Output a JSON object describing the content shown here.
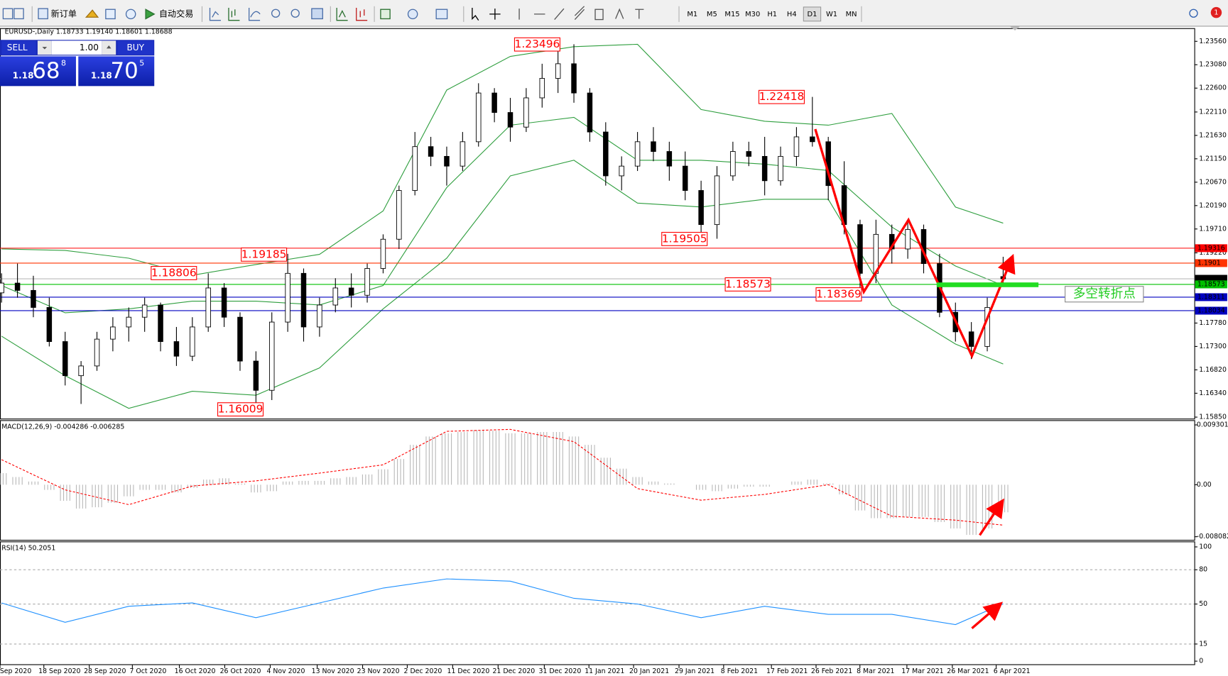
{
  "toolbar": {
    "new_order": "新订单",
    "auto_trading": "自动交易",
    "timeframes": [
      "M1",
      "M5",
      "M15",
      "M30",
      "H1",
      "H4",
      "D1",
      "W1",
      "MN"
    ],
    "notifications": "1"
  },
  "trade_panel": {
    "sell": "SELL",
    "lot": "1.00",
    "buy": "BUY",
    "bid": {
      "big": "1.18",
      "pips": "68",
      "frac": "8"
    },
    "ask": {
      "big": "1.18",
      "pips": "70",
      "frac": "5"
    }
  },
  "main_chart": {
    "header": "EURUSD-,Daily  1.18733 1.19140 1.18601 1.18688",
    "ylim": [
      1.1582,
      1.2383
    ],
    "yticks": [
      {
        "value": 1.2356,
        "label": "1.23560"
      },
      {
        "value": 1.2308,
        "label": "1.23080"
      },
      {
        "value": 1.226,
        "label": "1.22600"
      },
      {
        "value": 1.2211,
        "label": "1.22110"
      },
      {
        "value": 1.2163,
        "label": "1.21630"
      },
      {
        "value": 1.2115,
        "label": "1.21150"
      },
      {
        "value": 1.2067,
        "label": "1.20670"
      },
      {
        "value": 1.2019,
        "label": "1.20190"
      },
      {
        "value": 1.1971,
        "label": "1.19710"
      },
      {
        "value": 1.1922,
        "label": "1.19220"
      },
      {
        "value": 1.1778,
        "label": "1.17780"
      },
      {
        "value": 1.173,
        "label": "1.17300"
      },
      {
        "value": 1.1682,
        "label": "1.16820"
      },
      {
        "value": 1.1634,
        "label": "1.16340"
      },
      {
        "value": 1.1585,
        "label": "1.15850"
      }
    ],
    "candles": [
      [
        1.184,
        1.188,
        1.182,
        1.186
      ],
      [
        1.186,
        1.19,
        1.183,
        1.1845
      ],
      [
        1.1845,
        1.1875,
        1.179,
        1.181
      ],
      [
        1.181,
        1.183,
        1.173,
        1.174
      ],
      [
        1.174,
        1.176,
        1.165,
        1.167
      ],
      [
        1.167,
        1.17,
        1.1612,
        1.169
      ],
      [
        1.169,
        1.176,
        1.168,
        1.1745
      ],
      [
        1.1745,
        1.179,
        1.172,
        1.177
      ],
      [
        1.177,
        1.181,
        1.174,
        1.179
      ],
      [
        1.179,
        1.183,
        1.176,
        1.1815
      ],
      [
        1.1815,
        1.182,
        1.172,
        1.174
      ],
      [
        1.174,
        1.177,
        1.169,
        1.171
      ],
      [
        1.171,
        1.179,
        1.17,
        1.177
      ],
      [
        1.177,
        1.188,
        1.176,
        1.185
      ],
      [
        1.185,
        1.186,
        1.177,
        1.179
      ],
      [
        1.179,
        1.18,
        1.168,
        1.17
      ],
      [
        1.17,
        1.172,
        1.1603,
        1.164
      ],
      [
        1.164,
        1.18,
        1.162,
        1.178
      ],
      [
        1.178,
        1.192,
        1.176,
        1.188
      ],
      [
        1.188,
        1.189,
        1.174,
        1.177
      ],
      [
        1.177,
        1.183,
        1.175,
        1.1815
      ],
      [
        1.1815,
        1.187,
        1.18,
        1.185
      ],
      [
        1.185,
        1.188,
        1.181,
        1.1835
      ],
      [
        1.1835,
        1.19,
        1.182,
        1.189
      ],
      [
        1.189,
        1.196,
        1.188,
        1.195
      ],
      [
        1.195,
        1.206,
        1.193,
        1.205
      ],
      [
        1.205,
        1.217,
        1.204,
        1.214
      ],
      [
        1.214,
        1.216,
        1.21,
        1.212
      ],
      [
        1.212,
        1.214,
        1.206,
        1.21
      ],
      [
        1.21,
        1.217,
        1.209,
        1.215
      ],
      [
        1.215,
        1.227,
        1.214,
        1.225
      ],
      [
        1.225,
        1.226,
        1.219,
        1.221
      ],
      [
        1.221,
        1.224,
        1.215,
        1.218
      ],
      [
        1.218,
        1.226,
        1.217,
        1.224
      ],
      [
        1.224,
        1.231,
        1.222,
        1.228
      ],
      [
        1.228,
        1.234,
        1.225,
        1.231
      ],
      [
        1.231,
        1.235,
        1.223,
        1.225
      ],
      [
        1.225,
        1.226,
        1.215,
        1.217
      ],
      [
        1.217,
        1.219,
        1.206,
        1.208
      ],
      [
        1.208,
        1.212,
        1.205,
        1.21
      ],
      [
        1.21,
        1.217,
        1.209,
        1.215
      ],
      [
        1.215,
        1.218,
        1.211,
        1.213
      ],
      [
        1.213,
        1.215,
        1.207,
        1.21
      ],
      [
        1.21,
        1.213,
        1.203,
        1.205
      ],
      [
        1.205,
        1.207,
        1.196,
        1.198
      ],
      [
        1.198,
        1.21,
        1.1951,
        1.208
      ],
      [
        1.208,
        1.215,
        1.207,
        1.213
      ],
      [
        1.213,
        1.215,
        1.21,
        1.212
      ],
      [
        1.212,
        1.216,
        1.204,
        1.207
      ],
      [
        1.207,
        1.214,
        1.206,
        1.212
      ],
      [
        1.212,
        1.218,
        1.21,
        1.216
      ],
      [
        1.216,
        1.2242,
        1.214,
        1.215
      ],
      [
        1.215,
        1.216,
        1.203,
        1.206
      ],
      [
        1.206,
        1.211,
        1.196,
        1.198
      ],
      [
        1.198,
        1.199,
        1.1837,
        1.188
      ],
      [
        1.188,
        1.199,
        1.186,
        1.196
      ],
      [
        1.196,
        1.198,
        1.19,
        1.193
      ],
      [
        1.193,
        1.199,
        1.191,
        1.197
      ],
      [
        1.197,
        1.198,
        1.188,
        1.19
      ],
      [
        1.19,
        1.192,
        1.179,
        1.18
      ],
      [
        1.18,
        1.182,
        1.174,
        1.176
      ],
      [
        1.176,
        1.178,
        1.1704,
        1.173
      ],
      [
        1.173,
        1.183,
        1.172,
        1.181
      ],
      [
        1.18733,
        1.1914,
        1.18601,
        1.18688
      ]
    ],
    "bands": {
      "x": [
        0,
        4,
        8,
        12,
        16,
        20,
        24,
        28,
        32,
        36,
        40,
        44,
        48,
        52,
        56,
        60,
        63
      ],
      "color": "#2e9e3e",
      "upper": [
        1.193,
        1.1927,
        1.1911,
        1.1876,
        1.1898,
        1.1919,
        1.2008,
        1.2256,
        1.2325,
        1.2345,
        1.235,
        1.2216,
        1.2192,
        1.2184,
        1.2208,
        1.2016,
        1.1983
      ],
      "middle": [
        1.1855,
        1.1799,
        1.1807,
        1.1823,
        1.1823,
        1.1815,
        1.1855,
        1.2056,
        1.2184,
        1.22,
        1.2112,
        1.2112,
        1.2104,
        1.2091,
        1.1975,
        1.1895,
        1.1855
      ],
      "lower": [
        1.1751,
        1.167,
        1.1603,
        1.1638,
        1.163,
        1.1686,
        1.1807,
        1.1911,
        1.208,
        1.2112,
        1.2024,
        1.2016,
        1.2032,
        1.2032,
        1.1815,
        1.1735,
        1.1694
      ]
    },
    "levels": [
      {
        "value": 1.19316,
        "color": "#ff0000"
      },
      {
        "value": 1.1901,
        "color": "#ff3300"
      },
      {
        "value": 1.18688,
        "color": "#000000"
      },
      {
        "value": 1.18573,
        "color": "#00c000"
      },
      {
        "value": 1.18311,
        "color": "#0000c0"
      },
      {
        "value": 1.18034,
        "color": "#0000c0"
      }
    ],
    "annotations": [
      1.23496,
      1.22418,
      1.19505,
      1.19185,
      1.18806,
      1.18573,
      1.18369,
      1.16009
    ],
    "note": "多空转折点"
  },
  "macd": {
    "header": "MACD(12,26,9) -0.004286 -0.006285",
    "ylim": [
      -0.00857,
      0.01004
    ],
    "yticks": [
      0.009301,
      {
        "value": 0,
        "label": "0.00"
      },
      -0.008082
    ],
    "histogram": [
      0.0018,
      0.0012,
      0.0005,
      -0.0008,
      -0.0025,
      -0.0037,
      -0.0035,
      -0.0028,
      -0.0018,
      -0.0008,
      -0.0008,
      -0.0012,
      -0.0005,
      0.0008,
      0.001,
      0.0002,
      -0.0012,
      -0.001,
      0.0005,
      0.0006,
      0.0006,
      0.001,
      0.0012,
      0.0016,
      0.0024,
      0.004,
      0.0062,
      0.0075,
      0.008,
      0.0082,
      0.0085,
      0.0084,
      0.008,
      0.008,
      0.0082,
      0.0082,
      0.0075,
      0.0062,
      0.0042,
      0.0025,
      0.0012,
      0.0005,
      0.0002,
      0.0,
      -0.0008,
      -0.001,
      -0.0006,
      -0.0003,
      -0.0003,
      0.0,
      0.0005,
      0.0008,
      0.0002,
      -0.0015,
      -0.004,
      -0.0052,
      -0.0052,
      -0.005,
      -0.005,
      -0.0058,
      -0.0068,
      -0.0078,
      -0.0068,
      -0.004286
    ],
    "signal_x": [
      0,
      4,
      8,
      12,
      16,
      20,
      24,
      28,
      32,
      36,
      40,
      44,
      48,
      52,
      56,
      60,
      63
    ],
    "signal": [
      0.0039,
      -0.0008,
      -0.0031,
      -0.0002,
      0.0006,
      0.0018,
      0.0031,
      0.0083,
      0.0086,
      0.0067,
      -0.0006,
      -0.0024,
      -0.0015,
      0.0,
      -0.0049,
      -0.0055,
      -0.006285
    ]
  },
  "rsi": {
    "header": "RSI(14) 50.2051",
    "ylim": [
      -3.4,
      104.1
    ],
    "yticks": [
      100,
      80,
      50,
      15,
      0
    ],
    "levels": [
      80,
      50,
      15
    ],
    "x": [
      0,
      4,
      8,
      12,
      16,
      20,
      24,
      28,
      32,
      36,
      40,
      44,
      48,
      52,
      56,
      60,
      63
    ],
    "values": [
      51,
      34,
      48,
      51,
      38,
      51,
      64,
      72,
      70,
      55,
      50,
      38,
      48,
      41,
      41,
      32,
      50.2051
    ],
    "color": "#1e90ff"
  },
  "dates": [
    "Sep 2020",
    "18 Sep 2020",
    "28 Sep 2020",
    "7 Oct 2020",
    "16 Oct 2020",
    "26 Oct 2020",
    "4 Nov 2020",
    "13 Nov 2020",
    "23 Nov 2020",
    "2 Dec 2020",
    "11 Dec 2020",
    "21 Dec 2020",
    "31 Dec 2020",
    "11 Jan 2021",
    "20 Jan 2021",
    "29 Jan 2021",
    "8 Feb 2021",
    "17 Feb 2021",
    "26 Feb 2021",
    "8 Mar 2021",
    "17 Mar 2021",
    "26 Mar 2021",
    "6 Apr 2021"
  ]
}
